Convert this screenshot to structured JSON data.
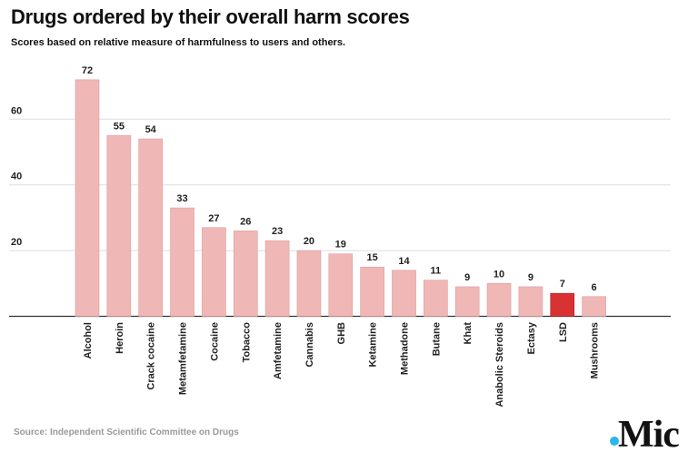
{
  "chart_data": {
    "type": "bar",
    "title": "Drugs ordered by their overall harm scores",
    "subtitle": "Scores based on relative measure of harmfulness to users and others.",
    "source": "Source: Independent Scientific Committee on Drugs",
    "categories": [
      "Alcohol",
      "Heroin",
      "Crack cocaine",
      "Metamfetamine",
      "Cocaine",
      "Tobacco",
      "Amfetamine",
      "Cannabis",
      "GHB",
      "Ketamine",
      "Methadone",
      "Butane",
      "Khat",
      "Anabolic Steroids",
      "Ectasy",
      "LSD",
      "Mushrooms"
    ],
    "values": [
      72,
      55,
      54,
      33,
      27,
      26,
      23,
      20,
      19,
      15,
      14,
      11,
      9,
      10,
      9,
      7,
      6
    ],
    "highlight": "LSD",
    "yticks": [
      "20",
      "40",
      "60"
    ],
    "ylim": [
      0,
      78
    ],
    "grid": true,
    "xlabel": "",
    "ylabel": "",
    "colors": {
      "bar": "#f0b7b7",
      "bar_border": "#dc9c9c",
      "highlight": "#d83232",
      "highlight_border": "#a82020",
      "grid": "#dddddd",
      "axis": "#333333"
    }
  },
  "logo": {
    "text": "Mic",
    "dot_color": "#2bb5ef"
  }
}
